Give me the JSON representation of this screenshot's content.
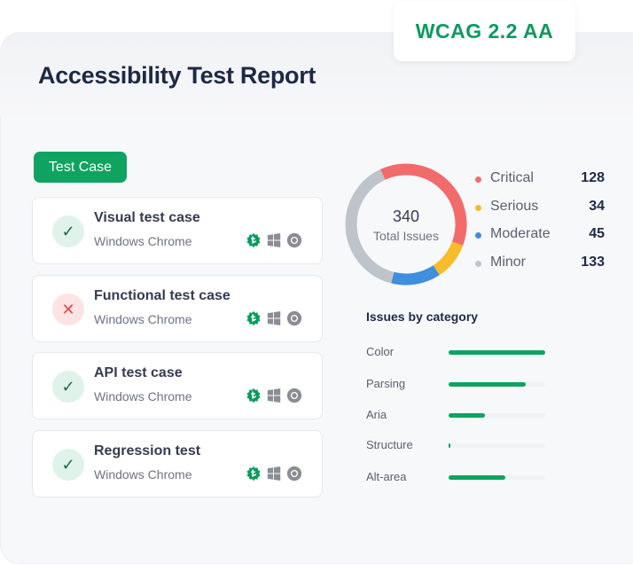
{
  "badge": "WCAG 2.2 AA",
  "title": "Accessibility Test Report",
  "test_case_button": "Test Case",
  "cards": [
    {
      "name": "Visual test case",
      "env": "Windows Chrome",
      "status": "pass"
    },
    {
      "name": "Functional test case",
      "env": "Windows Chrome",
      "status": "fail"
    },
    {
      "name": "API test case",
      "env": "Windows Chrome",
      "status": "pass"
    },
    {
      "name": "Regression test",
      "env": "Windows Chrome",
      "status": "pass"
    }
  ],
  "card_icons": [
    "lambdatest-icon",
    "windows-icon",
    "chrome-icon"
  ],
  "donut": {
    "total": "340",
    "total_label": "Total Issues"
  },
  "severity": [
    {
      "label": "Critical",
      "value": 128,
      "color": "#f26b6b"
    },
    {
      "label": "Serious",
      "value": 34,
      "color": "#f7bc2a"
    },
    {
      "label": "Moderate",
      "value": 45,
      "color": "#3f8fdc"
    },
    {
      "label": "Minor",
      "value": 133,
      "color": "#bfc3ca"
    }
  ],
  "category_title": "Issues by category",
  "categories": [
    {
      "label": "Color",
      "percent": 100
    },
    {
      "label": "Parsing",
      "percent": 80
    },
    {
      "label": "Aria",
      "percent": 38
    },
    {
      "label": "Structure",
      "percent": 2
    },
    {
      "label": "Alt-area",
      "percent": 59
    }
  ],
  "colors": {
    "accent": "#0ea360",
    "title": "#1f2945"
  }
}
